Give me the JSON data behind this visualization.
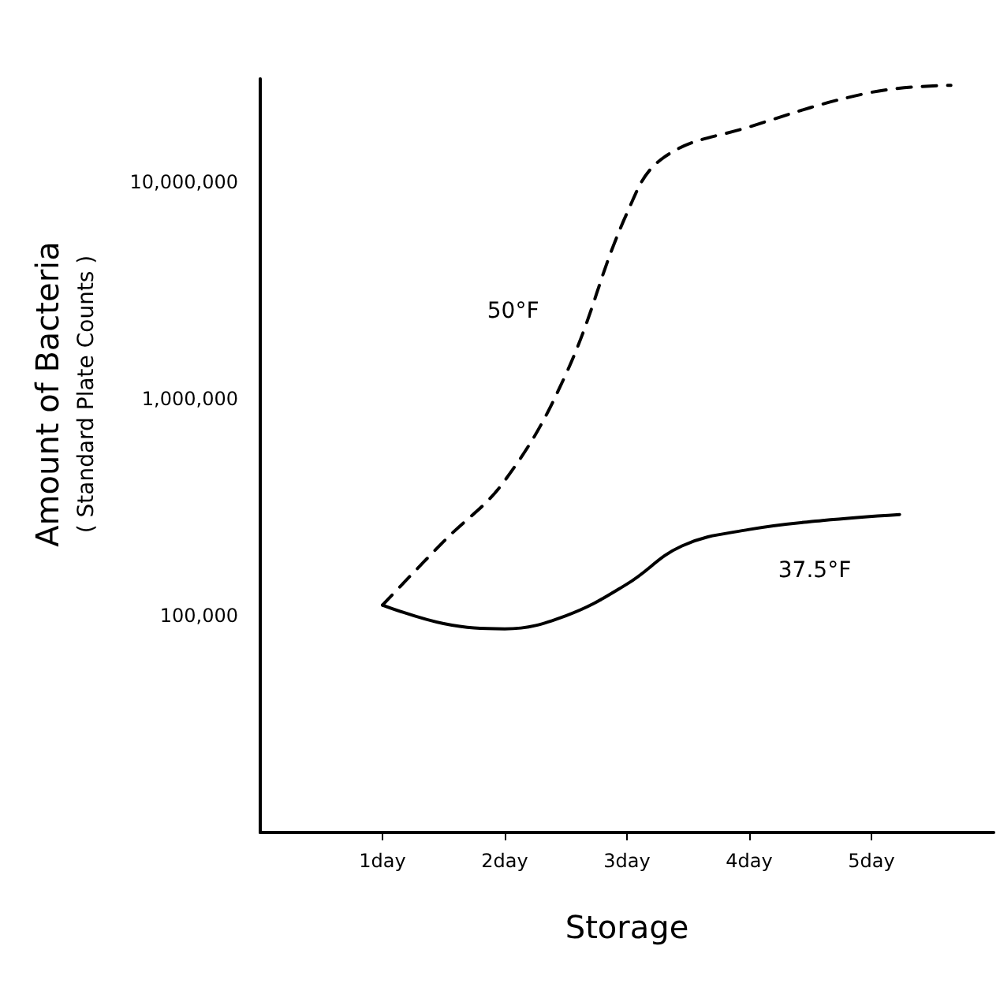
{
  "chart_data": {
    "type": "line",
    "xlabel": "Storage",
    "ylabel": "Amount of Bacteria",
    "subtitle": "( Standard Plate Counts )",
    "log": "y",
    "grid": false,
    "marker": "none",
    "xlim": [
      0,
      6
    ],
    "xticks": [
      {
        "value": 1,
        "label": "1day"
      },
      {
        "value": 2,
        "label": "2day"
      },
      {
        "value": 3,
        "label": "3day"
      },
      {
        "value": 4,
        "label": "4day"
      },
      {
        "value": 5,
        "label": "5day"
      }
    ],
    "ylim": [
      10000,
      30000000
    ],
    "yticks": [
      {
        "value": 100000,
        "label": "100,000"
      },
      {
        "value": 1000000,
        "label": "1,000,000"
      },
      {
        "value": 10000000,
        "label": "10,000,000"
      }
    ],
    "series": [
      {
        "name": "50°F",
        "color": "#000000",
        "line_style": "dashed",
        "x": [
          1,
          1.5,
          2,
          2.5,
          3,
          3.3,
          4,
          5,
          5.65
        ],
        "values": [
          112000,
          220000,
          420000,
          1300000,
          7200000,
          13000000,
          18000000,
          26000000,
          28000000
        ]
      },
      {
        "name": "37.5°F",
        "color": "#000000",
        "line_style": "solid",
        "x": [
          1,
          1.5,
          2,
          2.5,
          3,
          3.45,
          4,
          4.6,
          5.23
        ],
        "values": [
          112000,
          92000,
          87000,
          100000,
          140000,
          210000,
          250000,
          275000,
          293000
        ]
      }
    ]
  }
}
